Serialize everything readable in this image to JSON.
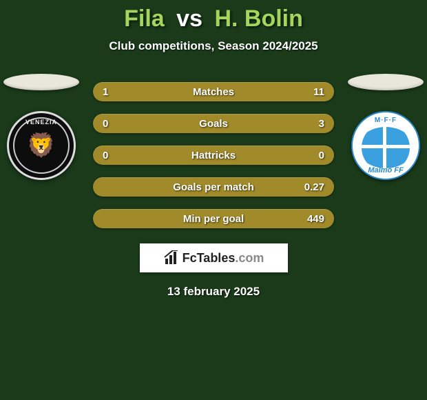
{
  "title": {
    "player1": "Fila",
    "vs": "vs",
    "player2": "H. Bolin",
    "color_p1": "#a4d65e",
    "color_vs": "#ffffff",
    "color_p2": "#a4d65e"
  },
  "subtitle": {
    "text": "Club competitions, Season 2024/2025",
    "color": "#ffffff"
  },
  "left_club": {
    "name": "Venezia",
    "top_text": "VENEZIA",
    "ellipse_color": "#e9e6da"
  },
  "right_club": {
    "name": "Malmö FF",
    "top_text": "M·F·F",
    "bottom_text": "Malmö FF",
    "ellipse_color": "#e9e6da"
  },
  "stats": {
    "row_background": "#a08a2a",
    "label_color": "#ffffff",
    "value_color": "#ffffff",
    "rows": [
      {
        "label": "Matches",
        "left": "1",
        "right": "11"
      },
      {
        "label": "Goals",
        "left": "0",
        "right": "3"
      },
      {
        "label": "Hattricks",
        "left": "0",
        "right": "0"
      },
      {
        "label": "Goals per match",
        "left": "",
        "right": "0.27"
      },
      {
        "label": "Min per goal",
        "left": "",
        "right": "449"
      }
    ]
  },
  "brand": {
    "text_main": "FcTables",
    "text_suffix": ".com",
    "icon_color": "#222222"
  },
  "date": {
    "text": "13 february 2025",
    "color": "#ffffff"
  },
  "page": {
    "background": "#1a3a1a"
  }
}
